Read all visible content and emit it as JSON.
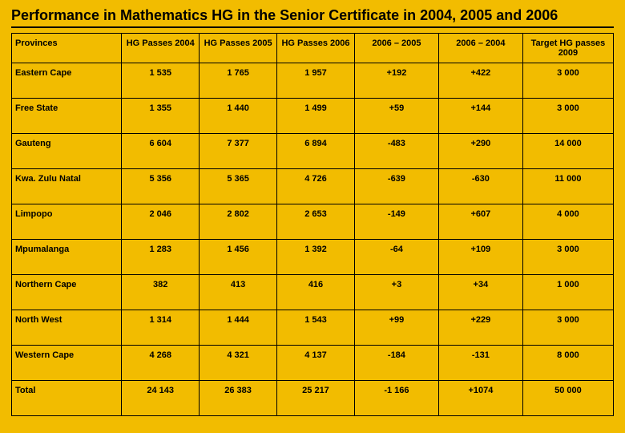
{
  "title": "Performance in Mathematics HG in the Senior Certificate in 2004, 2005 and 2006",
  "background_color": "#f2bc00",
  "border_color": "#000000",
  "text_color": "#000000",
  "title_fontsize": 18,
  "cell_fontsize": 11,
  "table": {
    "type": "table",
    "columns": [
      "Provinces",
      "HG Passes 2004",
      "HG Passes 2005",
      "HG Passes 2006",
      "2006 – 2005",
      "2006 – 2004",
      "Target HG passes 2009"
    ],
    "col_widths_pct": [
      17,
      12,
      12,
      12,
      13,
      13,
      14
    ],
    "rows": [
      [
        "Eastern Cape",
        "1 535",
        "1 765",
        "1 957",
        "+192",
        "+422",
        "3 000"
      ],
      [
        "Free State",
        "1 355",
        "1 440",
        "1 499",
        "+59",
        "+144",
        "3 000"
      ],
      [
        "Gauteng",
        "6 604",
        "7 377",
        "6 894",
        "-483",
        "+290",
        "14 000"
      ],
      [
        "Kwa. Zulu Natal",
        "5 356",
        "5 365",
        "4 726",
        "-639",
        "-630",
        "11 000"
      ],
      [
        "Limpopo",
        "2 046",
        "2 802",
        "2 653",
        "-149",
        "+607",
        "4 000"
      ],
      [
        "Mpumalanga",
        "1 283",
        "1 456",
        "1 392",
        "-64",
        "+109",
        "3 000"
      ],
      [
        "Northern Cape",
        "382",
        "413",
        "416",
        "+3",
        "+34",
        "1 000"
      ],
      [
        "North West",
        "1 314",
        "1 444",
        "1 543",
        "+99",
        "+229",
        "3 000"
      ],
      [
        "Western Cape",
        "4 268",
        "4 321",
        "4 137",
        "-184",
        "-131",
        "8 000"
      ],
      [
        "Total",
        "24 143",
        "26 383",
        "25 217",
        "-1 166",
        "+1074",
        "50 000"
      ]
    ]
  }
}
